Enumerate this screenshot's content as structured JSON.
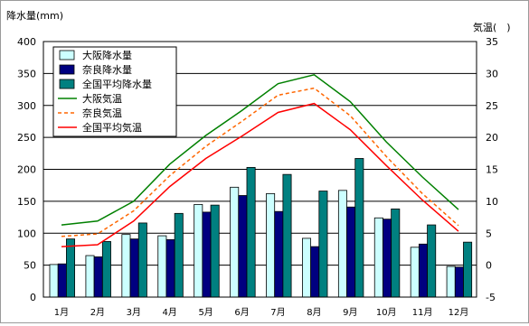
{
  "chart_data": {
    "type": "bar+line",
    "categories": [
      "1月",
      "2月",
      "3月",
      "4月",
      "5月",
      "6月",
      "7月",
      "8月",
      "9月",
      "10月",
      "11月",
      "12月"
    ],
    "ylabel_left": "降水量(mm)",
    "ylabel_right": "気温(　)",
    "ylim_left": [
      0,
      400
    ],
    "ylim_right": [
      -5,
      35
    ],
    "yticks_left": [
      "0",
      "50",
      "100",
      "150",
      "200",
      "250",
      "300",
      "350",
      "400"
    ],
    "yticks_right": [
      "-5",
      "0",
      "5",
      "10",
      "15",
      "20",
      "25",
      "30",
      "35"
    ],
    "grid": true,
    "legend_position": "top-left",
    "bar_series": [
      {
        "name": "大阪降水量",
        "color": "#ccffff",
        "values": [
          51,
          65,
          98,
          96,
          145,
          172,
          162,
          92,
          167,
          124,
          78,
          48
        ]
      },
      {
        "name": "奈良降水量",
        "color": "#000080",
        "values": [
          52,
          63,
          91,
          90,
          133,
          159,
          134,
          79,
          141,
          122,
          83,
          47
        ]
      },
      {
        "name": "全国平均降水量",
        "color": "#008080",
        "values": [
          91,
          87,
          116,
          131,
          144,
          203,
          192,
          166,
          217,
          138,
          113,
          86
        ]
      }
    ],
    "line_series": [
      {
        "name": "大阪気温",
        "color": "#008000",
        "style": "solid",
        "values": [
          6.3,
          6.9,
          10.0,
          15.8,
          20.3,
          24.2,
          28.4,
          29.8,
          25.6,
          19.3,
          13.8,
          8.7
        ]
      },
      {
        "name": "奈良気温",
        "color": "#ff6600",
        "style": "dashed",
        "values": [
          4.5,
          4.9,
          8.5,
          14.0,
          18.6,
          22.5,
          26.6,
          27.7,
          23.4,
          17.0,
          11.2,
          6.2
        ]
      },
      {
        "name": "全国平均気温",
        "color": "#ff0000",
        "style": "solid",
        "values": [
          2.9,
          3.2,
          6.9,
          12.3,
          16.7,
          20.2,
          23.9,
          25.3,
          21.2,
          15.6,
          10.2,
          5.3
        ]
      }
    ]
  }
}
